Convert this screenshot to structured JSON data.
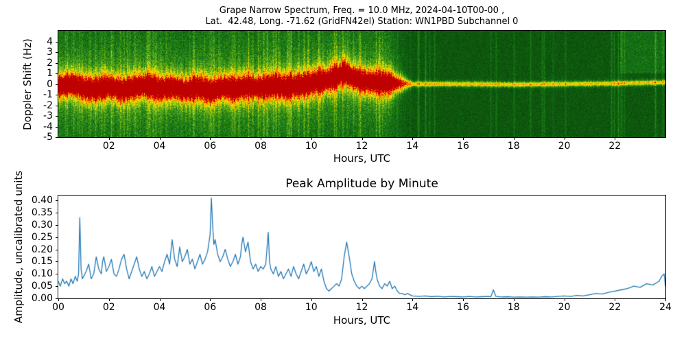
{
  "figure": {
    "background": "#ffffff",
    "line_color": "#1f77b4",
    "spectrogram_colors": {
      "low": "#084808",
      "mid_green": "#1a821a",
      "yellow_green": "#78b919",
      "yellow": "#e1e400",
      "orange": "#ff8c00",
      "red": "#e60000",
      "dark_red": "#be0000"
    }
  },
  "chart_data": [
    {
      "type": "heatmap",
      "subtype": "spectrogram",
      "title_line1": "Grape Narrow Spectrum, Freq. = 10.0 MHz, 2024-04-10T00-00 ,",
      "title_line2": "Lat.  42.48, Long. -71.62 (GridFN42el) Station: WN1PBD Subchannel 0",
      "xlabel": "Hours, UTC",
      "ylabel": "Doppler Shift (Hz)",
      "xlim": [
        0,
        24
      ],
      "ylim": [
        -5,
        5
      ],
      "xtick_values": [
        2,
        4,
        6,
        8,
        10,
        12,
        14,
        16,
        18,
        20,
        22
      ],
      "xtick_labels": [
        "02",
        "04",
        "06",
        "08",
        "10",
        "12",
        "14",
        "16",
        "18",
        "20",
        "22"
      ],
      "ytick_values": [
        4,
        3,
        2,
        1,
        0,
        -1,
        -2,
        -3,
        -4,
        -5
      ],
      "ytick_labels": [
        "4",
        "3",
        "2",
        "1",
        "0",
        "-1",
        "-2",
        "-3",
        "-4",
        "-5"
      ],
      "band_broad_hours": [
        0,
        13
      ],
      "band_narrow_hours": [
        13,
        24
      ],
      "doppler_trace": [
        [
          0.0,
          -0.2
        ],
        [
          0.5,
          0.0
        ],
        [
          1.0,
          -0.4
        ],
        [
          1.5,
          -0.5
        ],
        [
          2.0,
          -0.2
        ],
        [
          2.5,
          -0.6
        ],
        [
          3.0,
          -0.3
        ],
        [
          3.5,
          -0.1
        ],
        [
          4.0,
          -0.5
        ],
        [
          4.5,
          -0.3
        ],
        [
          5.0,
          -0.6
        ],
        [
          5.5,
          -0.3
        ],
        [
          6.0,
          -0.7
        ],
        [
          6.5,
          -0.3
        ],
        [
          7.0,
          -0.5
        ],
        [
          7.5,
          -0.2
        ],
        [
          8.0,
          -0.4
        ],
        [
          8.5,
          -0.1
        ],
        [
          9.0,
          -0.3
        ],
        [
          9.5,
          -0.15
        ],
        [
          10.0,
          0.1
        ],
        [
          10.5,
          0.3
        ],
        [
          11.0,
          0.7
        ],
        [
          11.3,
          1.1
        ],
        [
          11.6,
          0.6
        ],
        [
          12.0,
          0.3
        ],
        [
          12.5,
          0.15
        ],
        [
          13.0,
          0.1
        ],
        [
          14.0,
          0.0
        ],
        [
          16.0,
          0.0
        ],
        [
          18.0,
          -0.05
        ],
        [
          20.0,
          0.0
        ],
        [
          22.0,
          0.05
        ],
        [
          24.0,
          0.15
        ]
      ]
    },
    {
      "type": "line",
      "title": "Peak Amplitude by Minute",
      "xlabel": "Hours, UTC",
      "ylabel": "Amplitude, uncalibrated units",
      "xlim": [
        0,
        24
      ],
      "ylim": [
        0,
        0.42
      ],
      "xtick_values": [
        0,
        2,
        4,
        6,
        8,
        10,
        12,
        14,
        16,
        18,
        20,
        22,
        24
      ],
      "xtick_labels": [
        "00",
        "02",
        "04",
        "06",
        "08",
        "10",
        "12",
        "14",
        "16",
        "18",
        "20",
        "22",
        "24"
      ],
      "ytick_values": [
        0.0,
        0.05,
        0.1,
        0.15,
        0.2,
        0.25,
        0.3,
        0.35,
        0.4
      ],
      "ytick_labels": [
        "0.00",
        "0.05",
        "0.10",
        "0.15",
        "0.20",
        "0.25",
        "0.30",
        "0.35",
        "0.40"
      ],
      "series": [
        {
          "name": "peak_amplitude",
          "color": "#1f77b4",
          "points": [
            [
              0.0,
              0.07
            ],
            [
              0.08,
              0.05
            ],
            [
              0.17,
              0.08
            ],
            [
              0.25,
              0.06
            ],
            [
              0.33,
              0.07
            ],
            [
              0.42,
              0.05
            ],
            [
              0.5,
              0.08
            ],
            [
              0.58,
              0.06
            ],
            [
              0.67,
              0.09
            ],
            [
              0.75,
              0.07
            ],
            [
              0.8,
              0.1
            ],
            [
              0.85,
              0.33
            ],
            [
              0.9,
              0.12
            ],
            [
              0.95,
              0.08
            ],
            [
              1.0,
              0.09
            ],
            [
              1.1,
              0.11
            ],
            [
              1.2,
              0.14
            ],
            [
              1.3,
              0.08
            ],
            [
              1.4,
              0.1
            ],
            [
              1.5,
              0.17
            ],
            [
              1.6,
              0.12
            ],
            [
              1.7,
              0.1
            ],
            [
              1.75,
              0.15
            ],
            [
              1.8,
              0.17
            ],
            [
              1.9,
              0.11
            ],
            [
              2.0,
              0.13
            ],
            [
              2.1,
              0.16
            ],
            [
              2.2,
              0.1
            ],
            [
              2.3,
              0.09
            ],
            [
              2.4,
              0.12
            ],
            [
              2.5,
              0.16
            ],
            [
              2.6,
              0.18
            ],
            [
              2.7,
              0.12
            ],
            [
              2.8,
              0.08
            ],
            [
              2.9,
              0.11
            ],
            [
              3.0,
              0.14
            ],
            [
              3.1,
              0.17
            ],
            [
              3.2,
              0.12
            ],
            [
              3.3,
              0.09
            ],
            [
              3.4,
              0.11
            ],
            [
              3.5,
              0.08
            ],
            [
              3.6,
              0.1
            ],
            [
              3.7,
              0.13
            ],
            [
              3.8,
              0.09
            ],
            [
              3.9,
              0.11
            ],
            [
              4.0,
              0.13
            ],
            [
              4.1,
              0.11
            ],
            [
              4.2,
              0.15
            ],
            [
              4.3,
              0.18
            ],
            [
              4.4,
              0.14
            ],
            [
              4.5,
              0.24
            ],
            [
              4.55,
              0.2
            ],
            [
              4.6,
              0.16
            ],
            [
              4.7,
              0.13
            ],
            [
              4.8,
              0.21
            ],
            [
              4.9,
              0.15
            ],
            [
              5.0,
              0.17
            ],
            [
              5.1,
              0.2
            ],
            [
              5.2,
              0.14
            ],
            [
              5.3,
              0.16
            ],
            [
              5.4,
              0.12
            ],
            [
              5.5,
              0.15
            ],
            [
              5.6,
              0.18
            ],
            [
              5.7,
              0.14
            ],
            [
              5.8,
              0.16
            ],
            [
              5.9,
              0.19
            ],
            [
              6.0,
              0.26
            ],
            [
              6.05,
              0.41
            ],
            [
              6.1,
              0.3
            ],
            [
              6.15,
              0.22
            ],
            [
              6.2,
              0.24
            ],
            [
              6.3,
              0.18
            ],
            [
              6.4,
              0.15
            ],
            [
              6.5,
              0.17
            ],
            [
              6.6,
              0.2
            ],
            [
              6.7,
              0.16
            ],
            [
              6.8,
              0.13
            ],
            [
              6.9,
              0.15
            ],
            [
              7.0,
              0.18
            ],
            [
              7.1,
              0.14
            ],
            [
              7.2,
              0.17
            ],
            [
              7.25,
              0.22
            ],
            [
              7.3,
              0.25
            ],
            [
              7.4,
              0.19
            ],
            [
              7.5,
              0.23
            ],
            [
              7.6,
              0.15
            ],
            [
              7.7,
              0.12
            ],
            [
              7.8,
              0.14
            ],
            [
              7.9,
              0.11
            ],
            [
              8.0,
              0.13
            ],
            [
              8.1,
              0.12
            ],
            [
              8.2,
              0.14
            ],
            [
              8.3,
              0.27
            ],
            [
              8.35,
              0.15
            ],
            [
              8.4,
              0.12
            ],
            [
              8.5,
              0.1
            ],
            [
              8.6,
              0.13
            ],
            [
              8.7,
              0.09
            ],
            [
              8.8,
              0.11
            ],
            [
              8.9,
              0.08
            ],
            [
              9.0,
              0.1
            ],
            [
              9.1,
              0.12
            ],
            [
              9.2,
              0.09
            ],
            [
              9.3,
              0.13
            ],
            [
              9.4,
              0.1
            ],
            [
              9.5,
              0.08
            ],
            [
              9.6,
              0.11
            ],
            [
              9.7,
              0.14
            ],
            [
              9.8,
              0.1
            ],
            [
              9.9,
              0.12
            ],
            [
              10.0,
              0.15
            ],
            [
              10.1,
              0.11
            ],
            [
              10.2,
              0.13
            ],
            [
              10.3,
              0.09
            ],
            [
              10.4,
              0.12
            ],
            [
              10.5,
              0.07
            ],
            [
              10.6,
              0.04
            ],
            [
              10.7,
              0.03
            ],
            [
              10.8,
              0.04
            ],
            [
              10.9,
              0.05
            ],
            [
              11.0,
              0.06
            ],
            [
              11.1,
              0.05
            ],
            [
              11.2,
              0.08
            ],
            [
              11.3,
              0.17
            ],
            [
              11.4,
              0.23
            ],
            [
              11.45,
              0.2
            ],
            [
              11.5,
              0.17
            ],
            [
              11.6,
              0.1
            ],
            [
              11.7,
              0.07
            ],
            [
              11.8,
              0.05
            ],
            [
              11.9,
              0.04
            ],
            [
              12.0,
              0.05
            ],
            [
              12.1,
              0.04
            ],
            [
              12.2,
              0.05
            ],
            [
              12.3,
              0.06
            ],
            [
              12.4,
              0.08
            ],
            [
              12.5,
              0.15
            ],
            [
              12.55,
              0.11
            ],
            [
              12.6,
              0.08
            ],
            [
              12.7,
              0.05
            ],
            [
              12.8,
              0.04
            ],
            [
              12.9,
              0.06
            ],
            [
              13.0,
              0.05
            ],
            [
              13.1,
              0.07
            ],
            [
              13.2,
              0.04
            ],
            [
              13.3,
              0.05
            ],
            [
              13.4,
              0.03
            ],
            [
              13.5,
              0.02
            ],
            [
              13.6,
              0.02
            ],
            [
              13.7,
              0.015
            ],
            [
              13.8,
              0.02
            ],
            [
              13.9,
              0.015
            ],
            [
              14.0,
              0.01
            ],
            [
              14.25,
              0.008
            ],
            [
              14.5,
              0.01
            ],
            [
              14.75,
              0.007
            ],
            [
              15.0,
              0.009
            ],
            [
              15.25,
              0.006
            ],
            [
              15.5,
              0.008
            ],
            [
              15.75,
              0.007
            ],
            [
              16.0,
              0.006
            ],
            [
              16.25,
              0.008
            ],
            [
              16.5,
              0.006
            ],
            [
              16.75,
              0.007
            ],
            [
              17.0,
              0.008
            ],
            [
              17.1,
              0.007
            ],
            [
              17.2,
              0.035
            ],
            [
              17.3,
              0.008
            ],
            [
              17.5,
              0.006
            ],
            [
              17.75,
              0.007
            ],
            [
              18.0,
              0.005
            ],
            [
              18.25,
              0.006
            ],
            [
              18.5,
              0.005
            ],
            [
              18.75,
              0.006
            ],
            [
              19.0,
              0.005
            ],
            [
              19.25,
              0.007
            ],
            [
              19.5,
              0.006
            ],
            [
              19.75,
              0.008
            ],
            [
              20.0,
              0.01
            ],
            [
              20.25,
              0.008
            ],
            [
              20.5,
              0.012
            ],
            [
              20.75,
              0.01
            ],
            [
              21.0,
              0.015
            ],
            [
              21.25,
              0.02
            ],
            [
              21.5,
              0.018
            ],
            [
              21.75,
              0.025
            ],
            [
              22.0,
              0.03
            ],
            [
              22.25,
              0.035
            ],
            [
              22.5,
              0.04
            ],
            [
              22.75,
              0.05
            ],
            [
              23.0,
              0.045
            ],
            [
              23.25,
              0.06
            ],
            [
              23.5,
              0.055
            ],
            [
              23.75,
              0.07
            ],
            [
              23.85,
              0.09
            ],
            [
              23.95,
              0.1
            ],
            [
              24.0,
              0.05
            ]
          ]
        }
      ]
    }
  ]
}
